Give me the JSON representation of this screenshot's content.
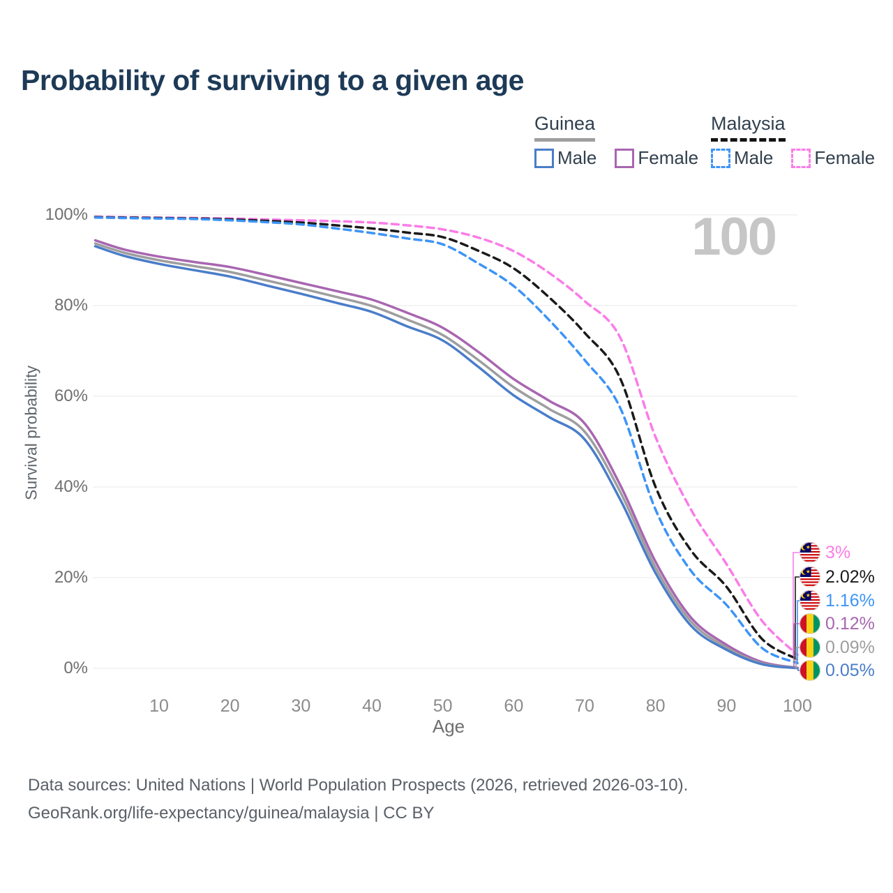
{
  "title": "Probability of surviving to a given age",
  "watermark": "100",
  "legend": {
    "groups": [
      {
        "name": "Guinea",
        "line_style": "solid",
        "underline_color": "#9e9e9e",
        "items": [
          {
            "label": "Male",
            "color": "#4a7dc9",
            "dashed": false
          },
          {
            "label": "Female",
            "color": "#a866b0",
            "dashed": false
          }
        ]
      },
      {
        "name": "Malaysia",
        "line_style": "dashed",
        "underline_color": "#141414",
        "items": [
          {
            "label": "Male",
            "color": "#3d94f6",
            "dashed": true
          },
          {
            "label": "Female",
            "color": "#fb7ce8",
            "dashed": true
          }
        ]
      }
    ]
  },
  "chart_data": {
    "type": "line",
    "title": "Probability of surviving to a given age",
    "xlabel": "Age",
    "ylabel": "Survival probability",
    "xlim": [
      1,
      100
    ],
    "ylim": [
      0,
      100
    ],
    "grid": true,
    "legend_position": "top-right",
    "xticks": [
      10,
      20,
      30,
      40,
      50,
      60,
      70,
      80,
      90,
      100
    ],
    "yticks": [
      {
        "value": 0,
        "label": "0%"
      },
      {
        "value": 20,
        "label": "20%"
      },
      {
        "value": 40,
        "label": "40%"
      },
      {
        "value": 60,
        "label": "60%"
      },
      {
        "value": 80,
        "label": "80%"
      },
      {
        "value": 100,
        "label": "100%"
      }
    ],
    "x": [
      1,
      5,
      10,
      15,
      20,
      25,
      30,
      35,
      40,
      45,
      50,
      55,
      60,
      65,
      70,
      75,
      80,
      85,
      90,
      95,
      100
    ],
    "series": [
      {
        "name": "Malaysia Female",
        "country": "Malaysia",
        "sex": "female",
        "color": "#fb7ce8",
        "dashed": true,
        "flag": "malaysia",
        "end_label": "3%",
        "values": [
          99.6,
          99.5,
          99.4,
          99.3,
          99.2,
          99.0,
          98.8,
          98.6,
          98.3,
          97.7,
          96.8,
          95.0,
          92.0,
          87.2,
          81.0,
          73.0,
          51.0,
          35.0,
          23.0,
          10.5,
          3.0
        ]
      },
      {
        "name": "Malaysia",
        "country": "Malaysia",
        "sex": "both",
        "color": "#1a1a1a",
        "dashed": true,
        "flag": "malaysia",
        "end_label": "2.02%",
        "values": [
          99.5,
          99.4,
          99.3,
          99.2,
          99.0,
          98.7,
          98.3,
          97.7,
          97.0,
          96.1,
          95.1,
          92.1,
          88.2,
          81.8,
          74.0,
          64.0,
          40.0,
          26.0,
          18.0,
          6.5,
          2.02
        ]
      },
      {
        "name": "Malaysia Male",
        "country": "Malaysia",
        "sex": "male",
        "color": "#3d94f6",
        "dashed": true,
        "flag": "malaysia",
        "end_label": "1.16%",
        "values": [
          99.4,
          99.3,
          99.2,
          99.1,
          98.8,
          98.4,
          97.9,
          97.0,
          96.0,
          94.8,
          93.5,
          89.3,
          84.3,
          76.8,
          68.0,
          57.5,
          35.0,
          21.5,
          14.0,
          4.5,
          1.16
        ]
      },
      {
        "name": "Guinea Female",
        "country": "Guinea",
        "sex": "female",
        "color": "#a866b0",
        "dashed": false,
        "flag": "guinea",
        "end_label": "0.12%",
        "values": [
          94.4,
          92.4,
          90.8,
          89.6,
          88.5,
          86.8,
          85.0,
          83.2,
          81.3,
          78.4,
          75.1,
          69.8,
          63.8,
          59.0,
          54.0,
          40.5,
          23.5,
          11.2,
          5.2,
          1.4,
          0.12
        ]
      },
      {
        "name": "Guinea",
        "country": "Guinea",
        "sex": "both",
        "color": "#9e9e9e",
        "dashed": false,
        "flag": "guinea",
        "end_label": "0.09%",
        "values": [
          93.7,
          91.7,
          90.0,
          88.7,
          87.4,
          85.6,
          83.8,
          81.9,
          79.9,
          76.9,
          73.5,
          68.0,
          62.0,
          57.2,
          52.2,
          39.0,
          22.2,
          10.3,
          4.6,
          1.1,
          0.09
        ]
      },
      {
        "name": "Guinea Male",
        "country": "Guinea",
        "sex": "male",
        "color": "#4a7dc9",
        "dashed": false,
        "flag": "guinea",
        "end_label": "0.05%",
        "values": [
          93.1,
          91.0,
          89.2,
          87.8,
          86.4,
          84.5,
          82.6,
          80.6,
          78.6,
          75.4,
          72.3,
          66.5,
          60.2,
          55.4,
          50.5,
          37.3,
          21.0,
          9.4,
          4.1,
          0.9,
          0.05
        ]
      }
    ]
  },
  "footer": {
    "line1": "Data sources: United Nations | World Population Prospects (2026, retrieved 2026-03-10).",
    "line2": "GeoRank.org/life-expectancy/guinea/malaysia | CC BY"
  }
}
